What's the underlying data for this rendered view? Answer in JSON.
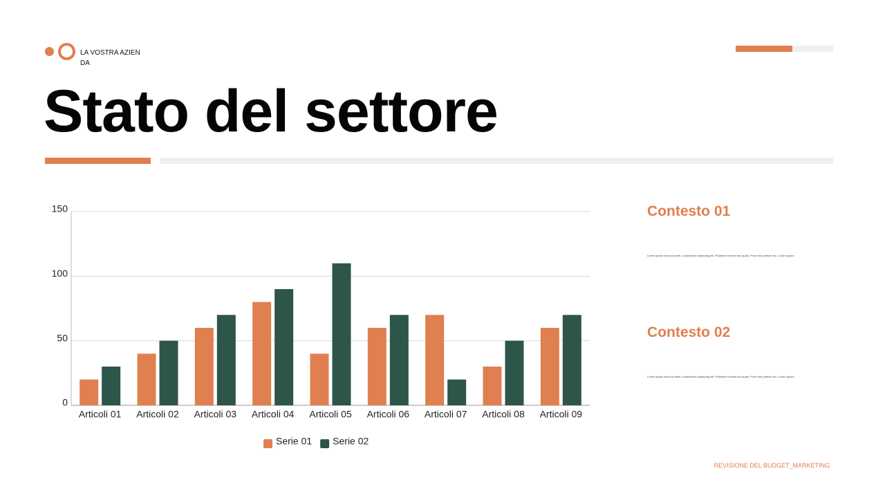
{
  "header": {
    "company": "LA VOSTRA AZIENDA",
    "title": "Stato del settore"
  },
  "chart_data": {
    "type": "bar",
    "categories": [
      "Articoli 01",
      "Articoli 02",
      "Articoli 03",
      "Articoli 04",
      "Articoli 05",
      "Articoli 06",
      "Articoli 07",
      "Articoli 08",
      "Articoli 09"
    ],
    "series": [
      {
        "name": "Serie 01",
        "color": "#e07f4f",
        "values": [
          20,
          40,
          60,
          80,
          40,
          60,
          70,
          30,
          60
        ]
      },
      {
        "name": "Serie 02",
        "color": "#2e5549",
        "values": [
          30,
          50,
          70,
          90,
          110,
          70,
          20,
          50,
          70
        ]
      }
    ],
    "ylim": [
      0,
      150
    ],
    "yticks": [
      0,
      50,
      100,
      150
    ],
    "grid": true,
    "legend": "bottom"
  },
  "sidebar": [
    {
      "heading": "Contesto 01",
      "text": "Lorem ipsum dolor sit amet, consectetur adipiscing elit. Praesent et amet nisl quam. Proin nec pretium leo. Lorem ipsum"
    },
    {
      "heading": "Contesto 02",
      "text": "Lorem ipsum dolor sit amet, consectetur adipiscing elit. Praesent et amet nisl quam. Proin nec pretium leo. Lorem ipsum"
    }
  ],
  "footer": "REVISIONE DEL BUDGET_MARKETING"
}
